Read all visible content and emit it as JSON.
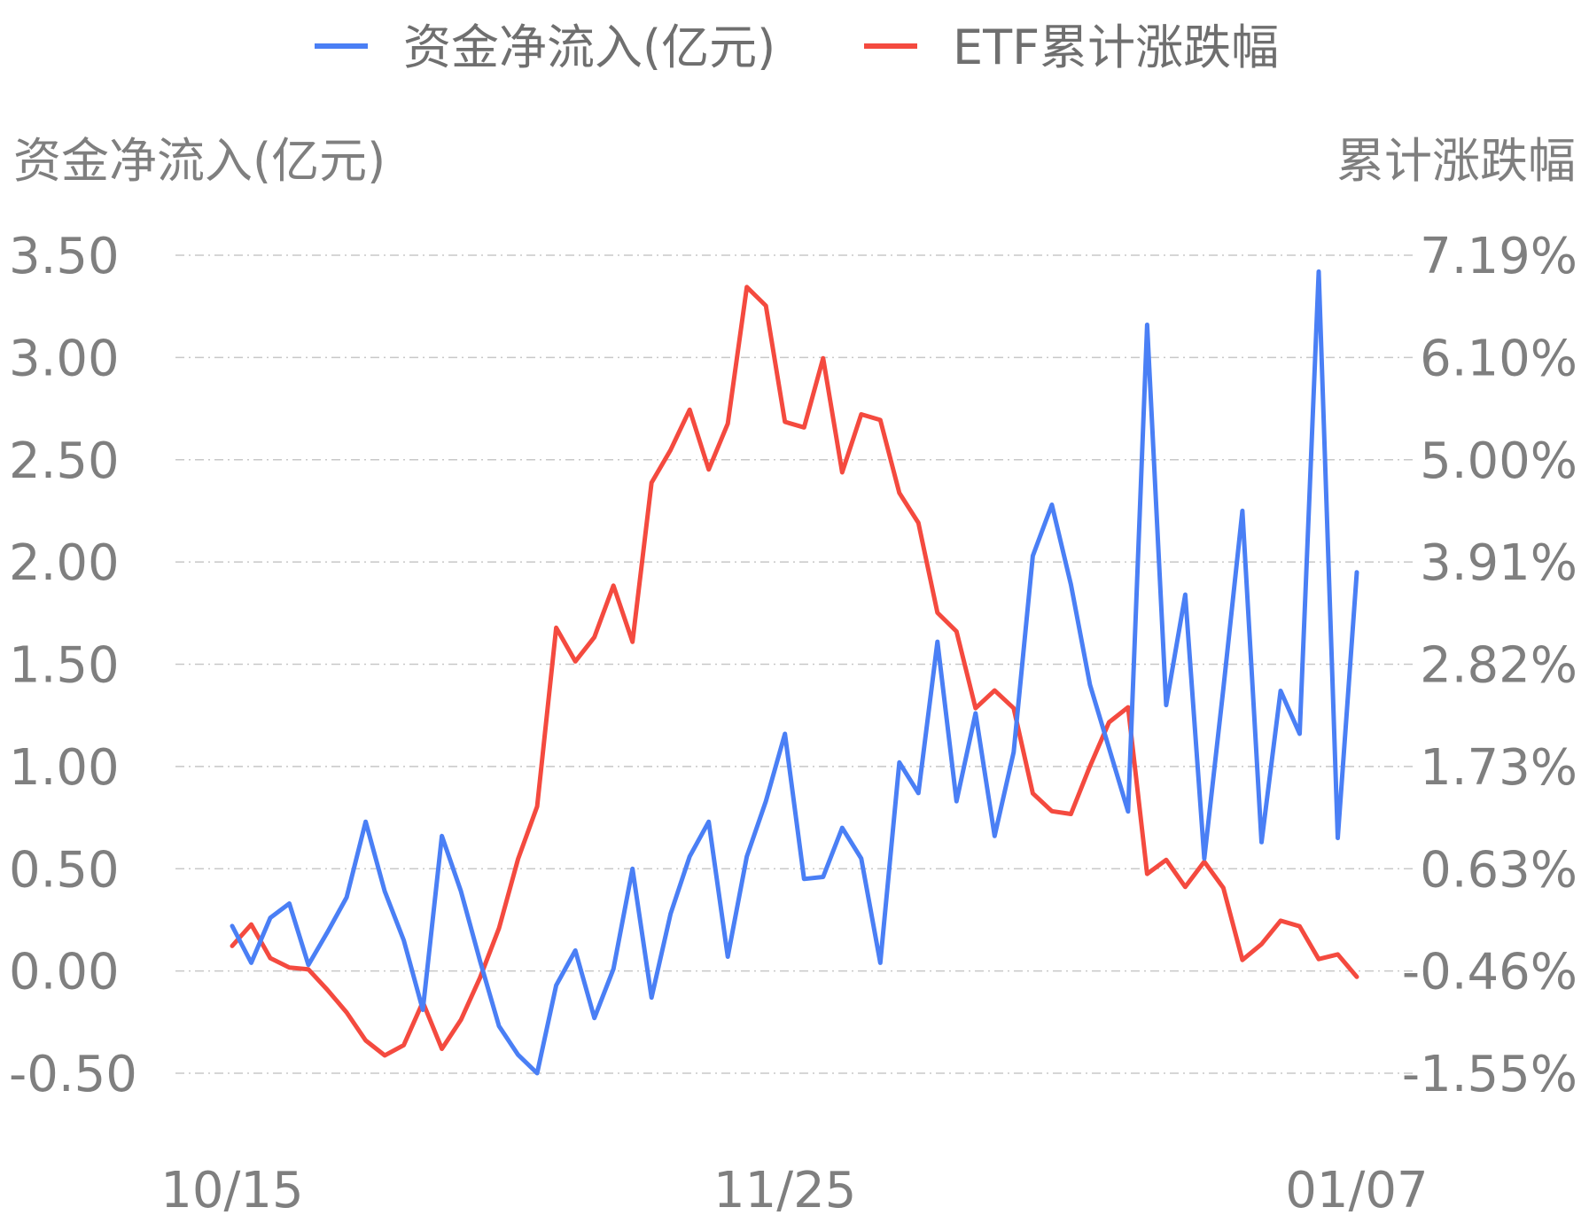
{
  "chart_data": {
    "type": "line",
    "colors": {
      "inflow": "#4a7ff5",
      "etf": "#f44a3f"
    },
    "legend": {
      "placement": "top-center",
      "items": [
        "资金净流入(亿元)",
        "ETF累计涨跌幅"
      ]
    },
    "y_left": {
      "title": "资金净流入(亿元)",
      "range": [
        -0.5,
        3.5
      ],
      "ticks": [
        "3.50",
        "3.00",
        "2.50",
        "2.00",
        "1.50",
        "1.00",
        "0.50",
        "0.00",
        "-0.50"
      ]
    },
    "y_right": {
      "title": "累计涨跌幅",
      "range": [
        -1.55,
        7.19
      ],
      "ticks": [
        "7.19%",
        "6.10%",
        "5.00%",
        "3.91%",
        "2.82%",
        "1.73%",
        "0.63%",
        "-0.46%",
        "-1.55%"
      ]
    },
    "x_ticks": [
      {
        "label": "10/15",
        "index": 0
      },
      {
        "label": "11/25",
        "index": 29
      },
      {
        "label": "01/07",
        "index": 59
      }
    ],
    "grid": "horizontal-dashed",
    "series": [
      {
        "name": "资金净流入(亿元)",
        "axis": "left",
        "values": [
          0.22,
          0.04,
          0.26,
          0.33,
          0.03,
          0.19,
          0.36,
          0.73,
          0.39,
          0.15,
          -0.19,
          0.66,
          0.39,
          0.05,
          -0.27,
          -0.41,
          -0.5,
          -0.07,
          0.1,
          -0.23,
          0.01,
          0.5,
          -0.13,
          0.28,
          0.56,
          0.73,
          0.07,
          0.56,
          0.83,
          1.16,
          0.45,
          0.46,
          0.7,
          0.55,
          0.04,
          1.02,
          0.87,
          1.61,
          0.83,
          1.26,
          0.66,
          1.07,
          2.03,
          2.28,
          1.89,
          1.4,
          1.09,
          0.78,
          3.16,
          1.3,
          1.84,
          0.55,
          1.38,
          2.25,
          0.63,
          1.37,
          1.16,
          3.42,
          0.65,
          1.95
        ]
      },
      {
        "name": "ETF累计涨跌幅",
        "axis": "right",
        "values": [
          -0.19,
          0.04,
          -0.32,
          -0.42,
          -0.44,
          -0.66,
          -0.9,
          -1.2,
          -1.36,
          -1.25,
          -0.79,
          -1.29,
          -0.98,
          -0.53,
          0.0,
          0.74,
          1.3,
          3.21,
          2.85,
          3.11,
          3.66,
          3.06,
          4.76,
          5.11,
          5.54,
          4.9,
          5.39,
          6.85,
          6.65,
          5.41,
          5.35,
          6.09,
          4.87,
          5.49,
          5.43,
          4.65,
          4.33,
          3.37,
          3.17,
          2.35,
          2.54,
          2.35,
          1.44,
          1.25,
          1.22,
          1.73,
          2.2,
          2.36,
          0.58,
          0.73,
          0.44,
          0.71,
          0.43,
          -0.34,
          -0.17,
          0.08,
          0.02,
          -0.33,
          -0.28,
          -0.52
        ]
      }
    ]
  }
}
